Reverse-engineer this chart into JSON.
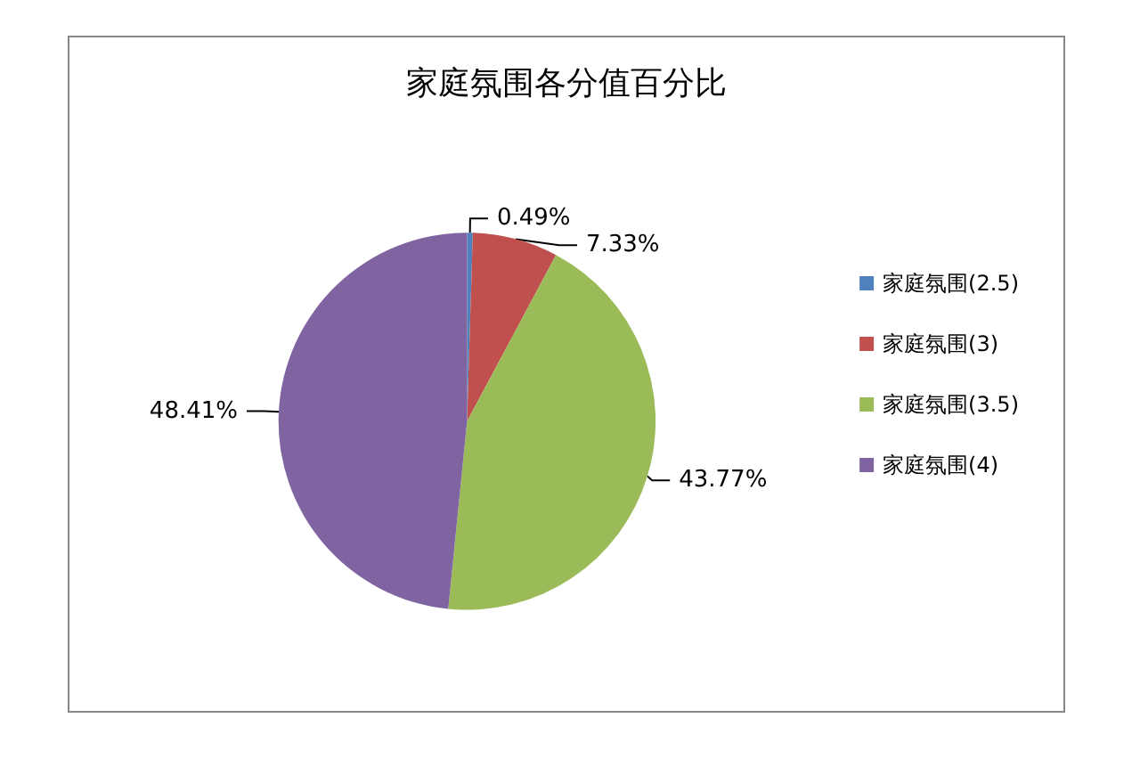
{
  "chart_data": {
    "type": "pie",
    "title": "家庭氛围各分值百分比",
    "categories": [
      "家庭氛围(2.5)",
      "家庭氛围(3)",
      "家庭氛围(3.5)",
      "家庭氛围(4)"
    ],
    "values": [
      0.49,
      7.33,
      43.77,
      48.41
    ],
    "colors": [
      "#4f81bd",
      "#c0504d",
      "#9bbb59",
      "#8064a2"
    ],
    "value_labels": [
      "0.49%",
      "7.33%",
      "43.77%",
      "48.41%"
    ],
    "legend": "right"
  }
}
